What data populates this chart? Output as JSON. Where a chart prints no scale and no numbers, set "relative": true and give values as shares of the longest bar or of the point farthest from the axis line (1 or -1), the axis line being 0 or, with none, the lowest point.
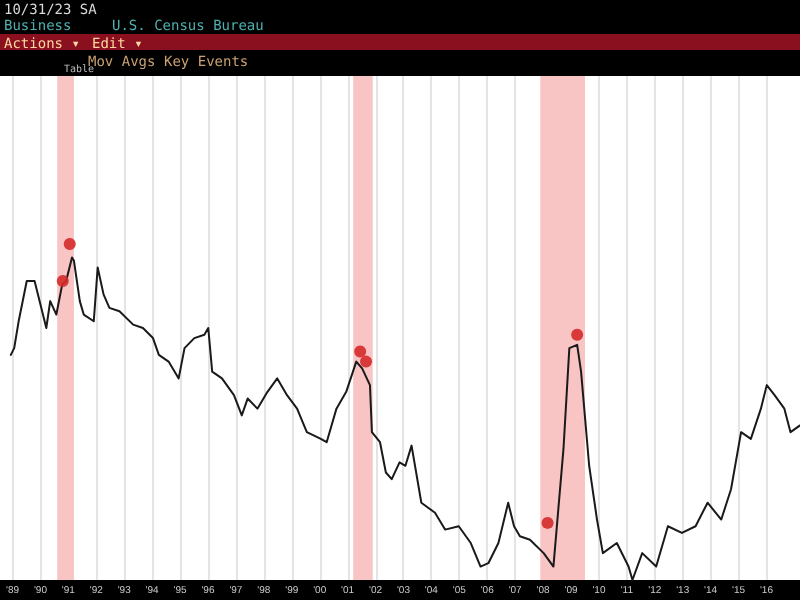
{
  "chart_data": {
    "type": "line",
    "relative": true,
    "annotations": [
      "10/31/23  SA",
      "Business",
      "U.S. Census Bureau",
      "Actions ▾",
      "Edit ▾",
      "Mov Avgs",
      "Key Events",
      "Table"
    ],
    "xlim": [
      1988.94,
      2017.2
    ],
    "xticks": [
      {
        "value": 1989,
        "label": "'89"
      },
      {
        "value": 1990,
        "label": "'90"
      },
      {
        "value": 1991,
        "label": "'91"
      },
      {
        "value": 1992,
        "label": "'92"
      },
      {
        "value": 1993,
        "label": "'93"
      },
      {
        "value": 1994,
        "label": "'94"
      },
      {
        "value": 1995,
        "label": "'95"
      },
      {
        "value": 1996,
        "label": "'96"
      },
      {
        "value": 1997,
        "label": "'97"
      },
      {
        "value": 1998,
        "label": "'98"
      },
      {
        "value": 1999,
        "label": "'99"
      },
      {
        "value": 2000,
        "label": "'00"
      },
      {
        "value": 2001,
        "label": "'01"
      },
      {
        "value": 2002,
        "label": "'02"
      },
      {
        "value": 2003,
        "label": "'03"
      },
      {
        "value": 2004,
        "label": "'04"
      },
      {
        "value": 2005,
        "label": "'05"
      },
      {
        "value": 2006,
        "label": "'06"
      },
      {
        "value": 2007,
        "label": "'07"
      },
      {
        "value": 2008,
        "label": "'08"
      },
      {
        "value": 2009,
        "label": "'09"
      },
      {
        "value": 2010,
        "label": "'10"
      },
      {
        "value": 2011,
        "label": "'11"
      },
      {
        "value": 2012,
        "label": "'12"
      },
      {
        "value": 2013,
        "label": "'13"
      },
      {
        "value": 2014,
        "label": "'14"
      },
      {
        "value": 2015,
        "label": "'15"
      },
      {
        "value": 2016,
        "label": "'16"
      }
    ],
    "grid": "x",
    "line_style": "solid",
    "bands": [
      {
        "axis": "x",
        "from": 1990.6,
        "to": 1991.2,
        "color": "#f9c4c4"
      },
      {
        "axis": "x",
        "from": 2001.2,
        "to": 2001.9,
        "color": "#f9c4c4"
      },
      {
        "axis": "x",
        "from": 2007.9,
        "to": 2009.5,
        "color": "#f9c4c4"
      }
    ],
    "series": [
      {
        "color": "#1a1a1a",
        "marker": "none",
        "x": [
          1988.94,
          1989.06,
          1989.22,
          1989.51,
          1989.79,
          1990.0,
          1990.21,
          1990.35,
          1990.57,
          1990.78,
          1990.92,
          1991.13,
          1991.2,
          1991.41,
          1991.55,
          1991.91,
          1992.05,
          1992.26,
          1992.47,
          1992.83,
          1993.32,
          1993.67,
          1994.03,
          1994.24,
          1994.59,
          1994.95,
          1995.16,
          1995.51,
          1995.87,
          1996.01,
          1996.15,
          1996.5,
          1996.93,
          1997.21,
          1997.42,
          1997.77,
          1998.13,
          1998.48,
          1998.83,
          1999.19,
          1999.54,
          2000.04,
          2000.25,
          2000.6,
          2000.95,
          2001.31,
          2001.52,
          2001.8,
          2001.87,
          2002.16,
          2002.37,
          2002.58,
          2002.86,
          2003.07,
          2003.29,
          2003.64,
          2004.13,
          2004.49,
          2004.98,
          2005.41,
          2005.76,
          2006.04,
          2006.4,
          2006.75,
          2006.96,
          2007.17,
          2007.53,
          2008.02,
          2008.37,
          2008.73,
          2008.94,
          2009.22,
          2009.36,
          2009.65,
          2009.93,
          2010.14,
          2010.64,
          2011.06,
          2011.2,
          2011.55,
          2012.05,
          2012.47,
          2012.97,
          2013.46,
          2013.89,
          2014.38,
          2014.73,
          2015.09,
          2015.44,
          2015.8,
          2016.01,
          2016.29,
          2016.64,
          2016.86,
          2017.2
        ],
        "values": [
          0.67,
          0.69,
          0.77,
          0.89,
          0.89,
          0.82,
          0.75,
          0.83,
          0.79,
          0.88,
          0.89,
          0.96,
          0.95,
          0.83,
          0.79,
          0.77,
          0.93,
          0.85,
          0.81,
          0.8,
          0.76,
          0.75,
          0.72,
          0.67,
          0.65,
          0.6,
          0.69,
          0.72,
          0.73,
          0.75,
          0.62,
          0.6,
          0.55,
          0.49,
          0.54,
          0.51,
          0.56,
          0.6,
          0.55,
          0.51,
          0.44,
          0.42,
          0.41,
          0.51,
          0.56,
          0.65,
          0.63,
          0.58,
          0.44,
          0.41,
          0.32,
          0.3,
          0.35,
          0.34,
          0.4,
          0.23,
          0.2,
          0.15,
          0.16,
          0.11,
          0.04,
          0.05,
          0.11,
          0.23,
          0.16,
          0.13,
          0.12,
          0.08,
          0.04,
          0.39,
          0.69,
          0.7,
          0.62,
          0.34,
          0.18,
          0.08,
          0.11,
          0.04,
          0.0,
          0.08,
          0.04,
          0.16,
          0.14,
          0.16,
          0.23,
          0.18,
          0.27,
          0.44,
          0.42,
          0.51,
          0.58,
          0.55,
          0.51,
          0.44,
          0.46
        ]
      },
      {
        "type": "scatter",
        "color": "#d42a2a",
        "marker": "circle",
        "x": [
          1990.8,
          1991.05,
          2001.45,
          2001.66,
          2008.16,
          2009.22
        ],
        "values": [
          0.89,
          1.0,
          0.68,
          0.65,
          0.17,
          0.73
        ]
      }
    ]
  }
}
